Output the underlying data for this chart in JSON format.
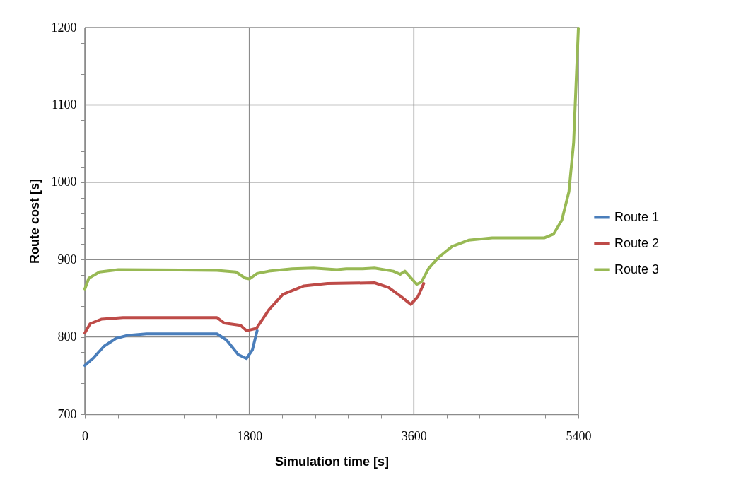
{
  "chart_data": {
    "type": "line",
    "xlabel": "Simulation time [s]",
    "ylabel": "Route cost [s]",
    "xlim": [
      0,
      5400
    ],
    "ylim": [
      700,
      1200
    ],
    "xticks": [
      0,
      {
        "value": 360,
        "label": null
      },
      {
        "value": 720,
        "label": null
      },
      {
        "value": 1080,
        "label": null
      },
      {
        "value": 1440,
        "label": null
      },
      1800,
      {
        "value": 2160,
        "label": null
      },
      {
        "value": 2520,
        "label": null
      },
      {
        "value": 2880,
        "label": null
      },
      {
        "value": 3240,
        "label": null
      },
      3600,
      {
        "value": 3960,
        "label": null
      },
      {
        "value": 4320,
        "label": null
      },
      {
        "value": 4680,
        "label": null
      },
      {
        "value": 5040,
        "label": null
      },
      5400
    ],
    "yticks": [
      700,
      {
        "value": 720,
        "label": null
      },
      {
        "value": 740,
        "label": null
      },
      {
        "value": 760,
        "label": null
      },
      {
        "value": 780,
        "label": null
      },
      800,
      {
        "value": 820,
        "label": null
      },
      {
        "value": 840,
        "label": null
      },
      {
        "value": 860,
        "label": null
      },
      {
        "value": 880,
        "label": null
      },
      900,
      {
        "value": 920,
        "label": null
      },
      {
        "value": 940,
        "label": null
      },
      {
        "value": 960,
        "label": null
      },
      {
        "value": 980,
        "label": null
      },
      1000,
      {
        "value": 1020,
        "label": null
      },
      {
        "value": 1040,
        "label": null
      },
      {
        "value": 1060,
        "label": null
      },
      {
        "value": 1080,
        "label": null
      },
      1100,
      {
        "value": 1120,
        "label": null
      },
      {
        "value": 1140,
        "label": null
      },
      {
        "value": 1160,
        "label": null
      },
      {
        "value": 1180,
        "label": null
      },
      1200
    ],
    "grid": true,
    "legend": "right",
    "marker": "none",
    "line_style": "solid",
    "series": [
      {
        "name": "Route 1",
        "color": "#4a7ebb",
        "x": [
          0,
          95,
          211,
          340,
          469,
          675,
          1446,
          1550,
          1679,
          1769,
          1833,
          1885
        ],
        "values": [
          763,
          773,
          788,
          798,
          802,
          804,
          804,
          796,
          777,
          772,
          783,
          808
        ]
      },
      {
        "name": "Route 2",
        "color": "#be4b48",
        "x": [
          0,
          57,
          185,
          417,
          1446,
          1524,
          1704,
          1769,
          1877,
          2013,
          2167,
          2398,
          2655,
          3169,
          3323,
          3451,
          3567,
          3644,
          3708
        ],
        "values": [
          805,
          817,
          823,
          825,
          825,
          818,
          815,
          808,
          811,
          835,
          855,
          866,
          869,
          870,
          864,
          853,
          842,
          852,
          869
        ]
      },
      {
        "name": "Route 3",
        "color": "#98b954",
        "x": [
          0,
          44,
          160,
          366,
          1446,
          1653,
          1756,
          1800,
          1885,
          2013,
          2270,
          2501,
          2758,
          2861,
          3040,
          3169,
          3374,
          3451,
          3502,
          3631,
          3683,
          3759,
          3863,
          4018,
          4199,
          4457,
          5025,
          5129,
          5219,
          5297,
          5348,
          5400
        ],
        "values": [
          862,
          876,
          884,
          887,
          886,
          884,
          876,
          875,
          882,
          885,
          888,
          889,
          887,
          888,
          888,
          889,
          885,
          881,
          885,
          868,
          871,
          888,
          902,
          917,
          925,
          928,
          928,
          933,
          951,
          988,
          1051,
          1199
        ]
      }
    ]
  }
}
